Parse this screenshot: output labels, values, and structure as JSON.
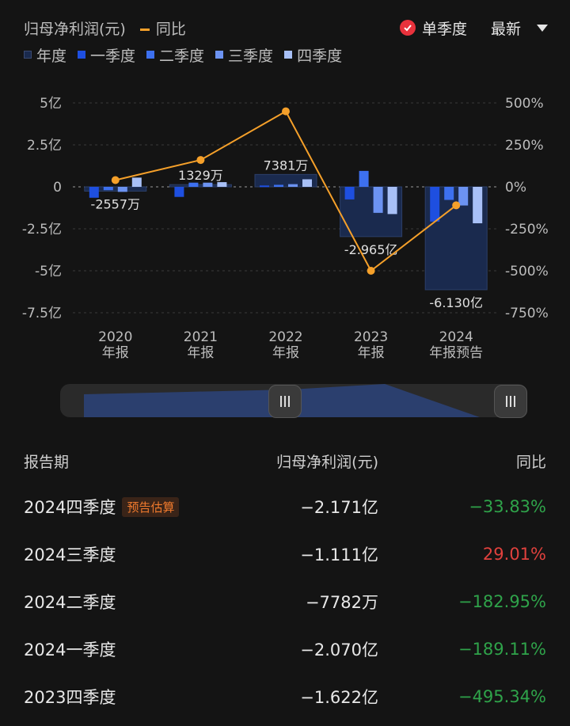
{
  "legend_top": {
    "series1": "归母净利润(元)",
    "series2": "同比"
  },
  "controls": {
    "single_quarter": "单季度",
    "latest": "最新"
  },
  "legend_bottom": [
    "年度",
    "一季度",
    "二季度",
    "三季度",
    "四季度"
  ],
  "colors": {
    "annual": "#1a2a4e",
    "q1": "#1e4fe0",
    "q2": "#3d70ef",
    "q3": "#6c93f2",
    "q4": "#a8c0f7",
    "yoy": "#f5a02a",
    "positive": "#e0413d",
    "negative": "#2fa34a"
  },
  "chart_data": {
    "type": "bar",
    "categories": [
      "2020\n年报",
      "2021\n年报",
      "2022\n年报",
      "2023\n年报",
      "2024\n年报预告"
    ],
    "category_lines": [
      [
        "2020",
        "年报"
      ],
      [
        "2021",
        "年报"
      ],
      [
        "2022",
        "年报"
      ],
      [
        "2023",
        "年报"
      ],
      [
        "2024",
        "年报预告"
      ]
    ],
    "annual": {
      "values": [
        -0.2557,
        0.1329,
        0.7381,
        -2.965,
        -6.13
      ],
      "labels": [
        "-2557万",
        "1329万",
        "7381万",
        "-2.965亿",
        "-6.130亿"
      ]
    },
    "quarterly": [
      {
        "name": "一季度",
        "values": [
          -0.65,
          -0.6,
          0.08,
          -0.75,
          -2.07
        ]
      },
      {
        "name": "二季度",
        "values": [
          -0.2,
          0.25,
          0.12,
          0.95,
          -0.7782
        ]
      },
      {
        "name": "三季度",
        "values": [
          -0.3,
          0.25,
          0.16,
          -1.55,
          -1.111
        ]
      },
      {
        "name": "四季度",
        "values": [
          0.55,
          0.28,
          0.45,
          -1.622,
          -2.171
        ]
      }
    ],
    "yoy": {
      "name": "同比",
      "values": [
        40,
        160,
        450,
        -500,
        -110
      ]
    },
    "y_left": {
      "ticks": [
        "5亿",
        "2.5亿",
        "0",
        "-2.5亿",
        "-5亿",
        "-7.5亿"
      ],
      "range": [
        -7.5,
        5
      ]
    },
    "y_right": {
      "ticks": [
        "500%",
        "250%",
        "0%",
        "-250%",
        "-500%",
        "-750%"
      ],
      "range": [
        -750,
        500
      ]
    }
  },
  "table": {
    "headers": [
      "报告期",
      "归母净利润(元)",
      "同比"
    ],
    "rows": [
      {
        "period": "2024四季度",
        "tag": "预告估算",
        "value": "−2.171亿",
        "yoy": "−33.83%",
        "trend": "negative"
      },
      {
        "period": "2024三季度",
        "tag": "",
        "value": "−1.111亿",
        "yoy": "29.01%",
        "trend": "positive"
      },
      {
        "period": "2024二季度",
        "tag": "",
        "value": "−7782万",
        "yoy": "−182.95%",
        "trend": "negative"
      },
      {
        "period": "2024一季度",
        "tag": "",
        "value": "−2.070亿",
        "yoy": "−189.11%",
        "trend": "negative"
      },
      {
        "period": "2023四季度",
        "tag": "",
        "value": "−1.622亿",
        "yoy": "−495.34%",
        "trend": "negative"
      }
    ]
  }
}
